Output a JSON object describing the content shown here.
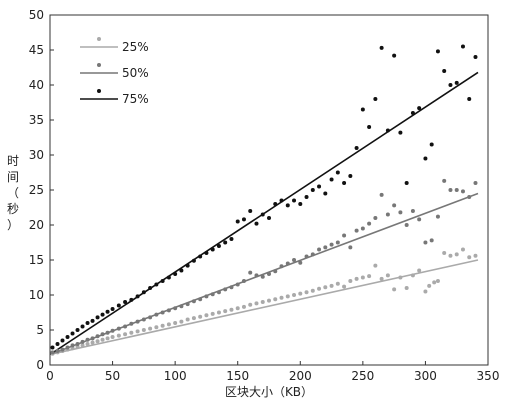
{
  "chart_data": {
    "type": "scatter",
    "xlabel": "区块大小（KB）",
    "ylabel": [
      "时",
      "间",
      "（",
      "秒",
      "）"
    ],
    "xlim": [
      0,
      350
    ],
    "ylim": [
      0,
      50
    ],
    "xticks": [
      0,
      50,
      100,
      150,
      200,
      250,
      300,
      350
    ],
    "yticks": [
      0,
      5,
      10,
      15,
      20,
      25,
      30,
      35,
      40,
      45,
      50
    ],
    "grid": false,
    "legend_position": "top-left",
    "series": [
      {
        "name": "25%",
        "color": "#aaaaaa",
        "fit": {
          "x": [
            0,
            342
          ],
          "y": [
            1.5,
            15.0
          ]
        },
        "points": [
          [
            2,
            1.6
          ],
          [
            6,
            1.8
          ],
          [
            10,
            2.0
          ],
          [
            14,
            2.2
          ],
          [
            18,
            2.4
          ],
          [
            22,
            2.6
          ],
          [
            26,
            2.8
          ],
          [
            30,
            3.0
          ],
          [
            34,
            3.2
          ],
          [
            38,
            3.4
          ],
          [
            42,
            3.6
          ],
          [
            46,
            3.8
          ],
          [
            50,
            4.0
          ],
          [
            55,
            4.2
          ],
          [
            60,
            4.4
          ],
          [
            65,
            4.6
          ],
          [
            70,
            4.8
          ],
          [
            75,
            5.0
          ],
          [
            80,
            5.2
          ],
          [
            85,
            5.4
          ],
          [
            90,
            5.6
          ],
          [
            95,
            5.8
          ],
          [
            100,
            6.0
          ],
          [
            105,
            6.2
          ],
          [
            110,
            6.5
          ],
          [
            115,
            6.7
          ],
          [
            120,
            6.9
          ],
          [
            125,
            7.1
          ],
          [
            130,
            7.3
          ],
          [
            135,
            7.5
          ],
          [
            140,
            7.7
          ],
          [
            145,
            7.9
          ],
          [
            150,
            8.1
          ],
          [
            155,
            8.3
          ],
          [
            160,
            8.6
          ],
          [
            165,
            8.8
          ],
          [
            170,
            9.0
          ],
          [
            175,
            9.2
          ],
          [
            180,
            9.4
          ],
          [
            185,
            9.6
          ],
          [
            190,
            9.8
          ],
          [
            195,
            10.0
          ],
          [
            200,
            10.2
          ],
          [
            205,
            10.4
          ],
          [
            210,
            10.6
          ],
          [
            215,
            10.9
          ],
          [
            220,
            11.1
          ],
          [
            225,
            11.3
          ],
          [
            230,
            11.6
          ],
          [
            235,
            11.2
          ],
          [
            240,
            12.0
          ],
          [
            245,
            12.3
          ],
          [
            250,
            12.5
          ],
          [
            255,
            12.7
          ],
          [
            260,
            14.2
          ],
          [
            265,
            12.3
          ],
          [
            270,
            12.8
          ],
          [
            275,
            10.8
          ],
          [
            280,
            12.5
          ],
          [
            285,
            11.0
          ],
          [
            290,
            12.8
          ],
          [
            295,
            13.5
          ],
          [
            300,
            10.5
          ],
          [
            303,
            11.3
          ],
          [
            307,
            11.8
          ],
          [
            310,
            12.0
          ],
          [
            315,
            16.0
          ],
          [
            320,
            15.6
          ],
          [
            325,
            15.8
          ],
          [
            330,
            16.5
          ],
          [
            335,
            15.4
          ],
          [
            340,
            15.6
          ]
        ]
      },
      {
        "name": "50%",
        "color": "#777777",
        "fit": {
          "x": [
            0,
            342
          ],
          "y": [
            1.5,
            24.5
          ]
        },
        "points": [
          [
            2,
            1.8
          ],
          [
            6,
            2.0
          ],
          [
            10,
            2.2
          ],
          [
            14,
            2.5
          ],
          [
            18,
            2.8
          ],
          [
            22,
            3.0
          ],
          [
            26,
            3.3
          ],
          [
            30,
            3.6
          ],
          [
            34,
            3.8
          ],
          [
            38,
            4.1
          ],
          [
            42,
            4.4
          ],
          [
            46,
            4.6
          ],
          [
            50,
            4.9
          ],
          [
            55,
            5.2
          ],
          [
            60,
            5.5
          ],
          [
            65,
            5.9
          ],
          [
            70,
            6.2
          ],
          [
            75,
            6.5
          ],
          [
            80,
            6.8
          ],
          [
            85,
            7.2
          ],
          [
            90,
            7.5
          ],
          [
            95,
            7.8
          ],
          [
            100,
            8.1
          ],
          [
            105,
            8.4
          ],
          [
            110,
            8.7
          ],
          [
            115,
            9.1
          ],
          [
            120,
            9.4
          ],
          [
            125,
            9.8
          ],
          [
            130,
            10.1
          ],
          [
            135,
            10.4
          ],
          [
            140,
            10.8
          ],
          [
            145,
            11.1
          ],
          [
            150,
            11.5
          ],
          [
            155,
            12.0
          ],
          [
            160,
            13.2
          ],
          [
            165,
            12.8
          ],
          [
            170,
            12.6
          ],
          [
            175,
            13.0
          ],
          [
            180,
            13.4
          ],
          [
            185,
            14.1
          ],
          [
            190,
            14.5
          ],
          [
            195,
            15.0
          ],
          [
            200,
            14.6
          ],
          [
            205,
            15.5
          ],
          [
            210,
            15.8
          ],
          [
            215,
            16.5
          ],
          [
            220,
            16.8
          ],
          [
            225,
            17.2
          ],
          [
            230,
            17.5
          ],
          [
            235,
            18.5
          ],
          [
            240,
            16.8
          ],
          [
            245,
            19.2
          ],
          [
            250,
            19.5
          ],
          [
            255,
            20.2
          ],
          [
            260,
            21.0
          ],
          [
            265,
            24.3
          ],
          [
            270,
            21.5
          ],
          [
            275,
            22.8
          ],
          [
            280,
            21.8
          ],
          [
            285,
            20.0
          ],
          [
            290,
            22.0
          ],
          [
            295,
            20.8
          ],
          [
            300,
            17.5
          ],
          [
            305,
            17.8
          ],
          [
            310,
            21.2
          ],
          [
            315,
            26.3
          ],
          [
            320,
            25.0
          ],
          [
            325,
            25.0
          ],
          [
            330,
            24.8
          ],
          [
            335,
            24.0
          ],
          [
            340,
            26.0
          ]
        ]
      },
      {
        "name": "75%",
        "color": "#111111",
        "fit": {
          "x": [
            0,
            342
          ],
          "y": [
            1.5,
            41.8
          ]
        },
        "points": [
          [
            2,
            2.5
          ],
          [
            6,
            3.0
          ],
          [
            10,
            3.5
          ],
          [
            14,
            4.0
          ],
          [
            18,
            4.5
          ],
          [
            22,
            5.0
          ],
          [
            26,
            5.5
          ],
          [
            30,
            6.0
          ],
          [
            34,
            6.3
          ],
          [
            38,
            6.8
          ],
          [
            42,
            7.2
          ],
          [
            46,
            7.6
          ],
          [
            50,
            8.0
          ],
          [
            55,
            8.5
          ],
          [
            60,
            9.0
          ],
          [
            65,
            9.3
          ],
          [
            70,
            9.8
          ],
          [
            75,
            10.4
          ],
          [
            80,
            11.0
          ],
          [
            85,
            11.5
          ],
          [
            90,
            12.0
          ],
          [
            95,
            12.5
          ],
          [
            100,
            13.0
          ],
          [
            105,
            13.5
          ],
          [
            110,
            14.2
          ],
          [
            115,
            14.9
          ],
          [
            120,
            15.5
          ],
          [
            125,
            16.0
          ],
          [
            130,
            16.5
          ],
          [
            135,
            17.0
          ],
          [
            140,
            17.5
          ],
          [
            145,
            18.0
          ],
          [
            150,
            20.5
          ],
          [
            155,
            20.8
          ],
          [
            160,
            22.0
          ],
          [
            165,
            20.2
          ],
          [
            170,
            21.5
          ],
          [
            175,
            21.0
          ],
          [
            180,
            23.0
          ],
          [
            185,
            23.5
          ],
          [
            190,
            22.8
          ],
          [
            195,
            23.5
          ],
          [
            200,
            23.0
          ],
          [
            205,
            24.0
          ],
          [
            210,
            25.0
          ],
          [
            215,
            25.5
          ],
          [
            220,
            24.5
          ],
          [
            225,
            26.5
          ],
          [
            230,
            27.5
          ],
          [
            235,
            26.0
          ],
          [
            240,
            27.0
          ],
          [
            245,
            31.0
          ],
          [
            250,
            36.5
          ],
          [
            255,
            34.0
          ],
          [
            260,
            38.0
          ],
          [
            265,
            45.3
          ],
          [
            270,
            33.5
          ],
          [
            275,
            44.2
          ],
          [
            280,
            33.2
          ],
          [
            285,
            26.0
          ],
          [
            290,
            36.0
          ],
          [
            295,
            36.7
          ],
          [
            300,
            29.5
          ],
          [
            305,
            31.5
          ],
          [
            310,
            44.8
          ],
          [
            315,
            42.0
          ],
          [
            320,
            40.0
          ],
          [
            325,
            40.3
          ],
          [
            330,
            45.5
          ],
          [
            335,
            38.0
          ],
          [
            340,
            44.0
          ]
        ]
      }
    ]
  }
}
